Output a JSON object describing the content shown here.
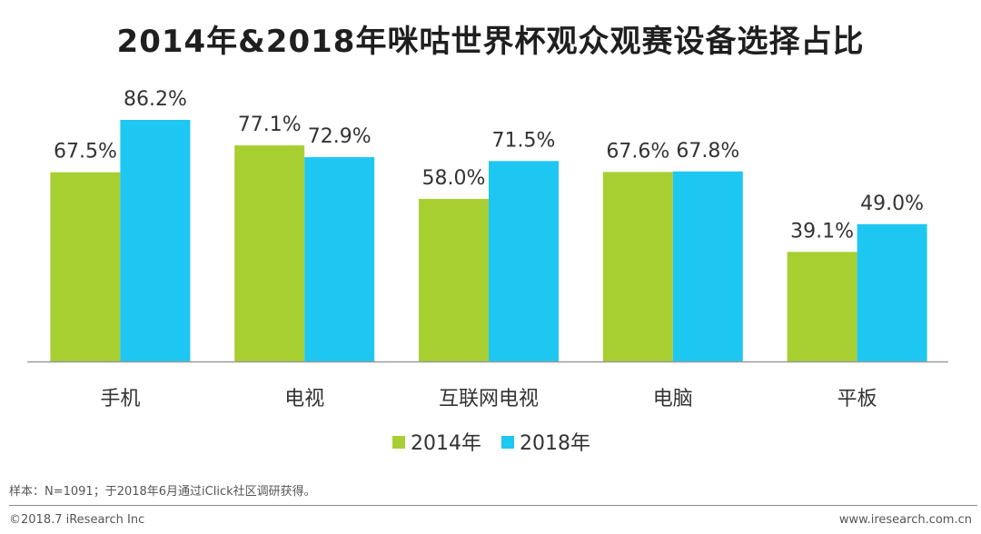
{
  "title": "2014年&2018年咪咕世界杯观众观赛设备选择占比",
  "chart_data": {
    "type": "bar",
    "title": "2014年&2018年咪咕世界杯观众观赛设备选择占比",
    "categories": [
      "手机",
      "电视",
      "互联网电视",
      "电脑",
      "平板"
    ],
    "series": [
      {
        "name": "2014年",
        "values": [
          67.5,
          77.1,
          58.0,
          67.6,
          39.1
        ],
        "labels": [
          "67.5%",
          "77.1%",
          "58.0%",
          "67.6%",
          "39.1%"
        ],
        "color": "#a8cf32"
      },
      {
        "name": "2018年",
        "values": [
          86.2,
          72.9,
          71.5,
          67.8,
          49.0
        ],
        "labels": [
          "86.2%",
          "72.9%",
          "71.5%",
          "67.8%",
          "49.0%"
        ],
        "color": "#1ec7f2"
      }
    ],
    "ylim": [
      0,
      100
    ],
    "xlabel": "",
    "ylabel": "",
    "grid": false,
    "legend": "bottom-center"
  },
  "footer": {
    "note": "样本：N=1091；于2018年6月通过iClick社区调研获得。",
    "copyright": "©2018.7 iResearch Inc",
    "url": "www.iresearch.com.cn"
  }
}
